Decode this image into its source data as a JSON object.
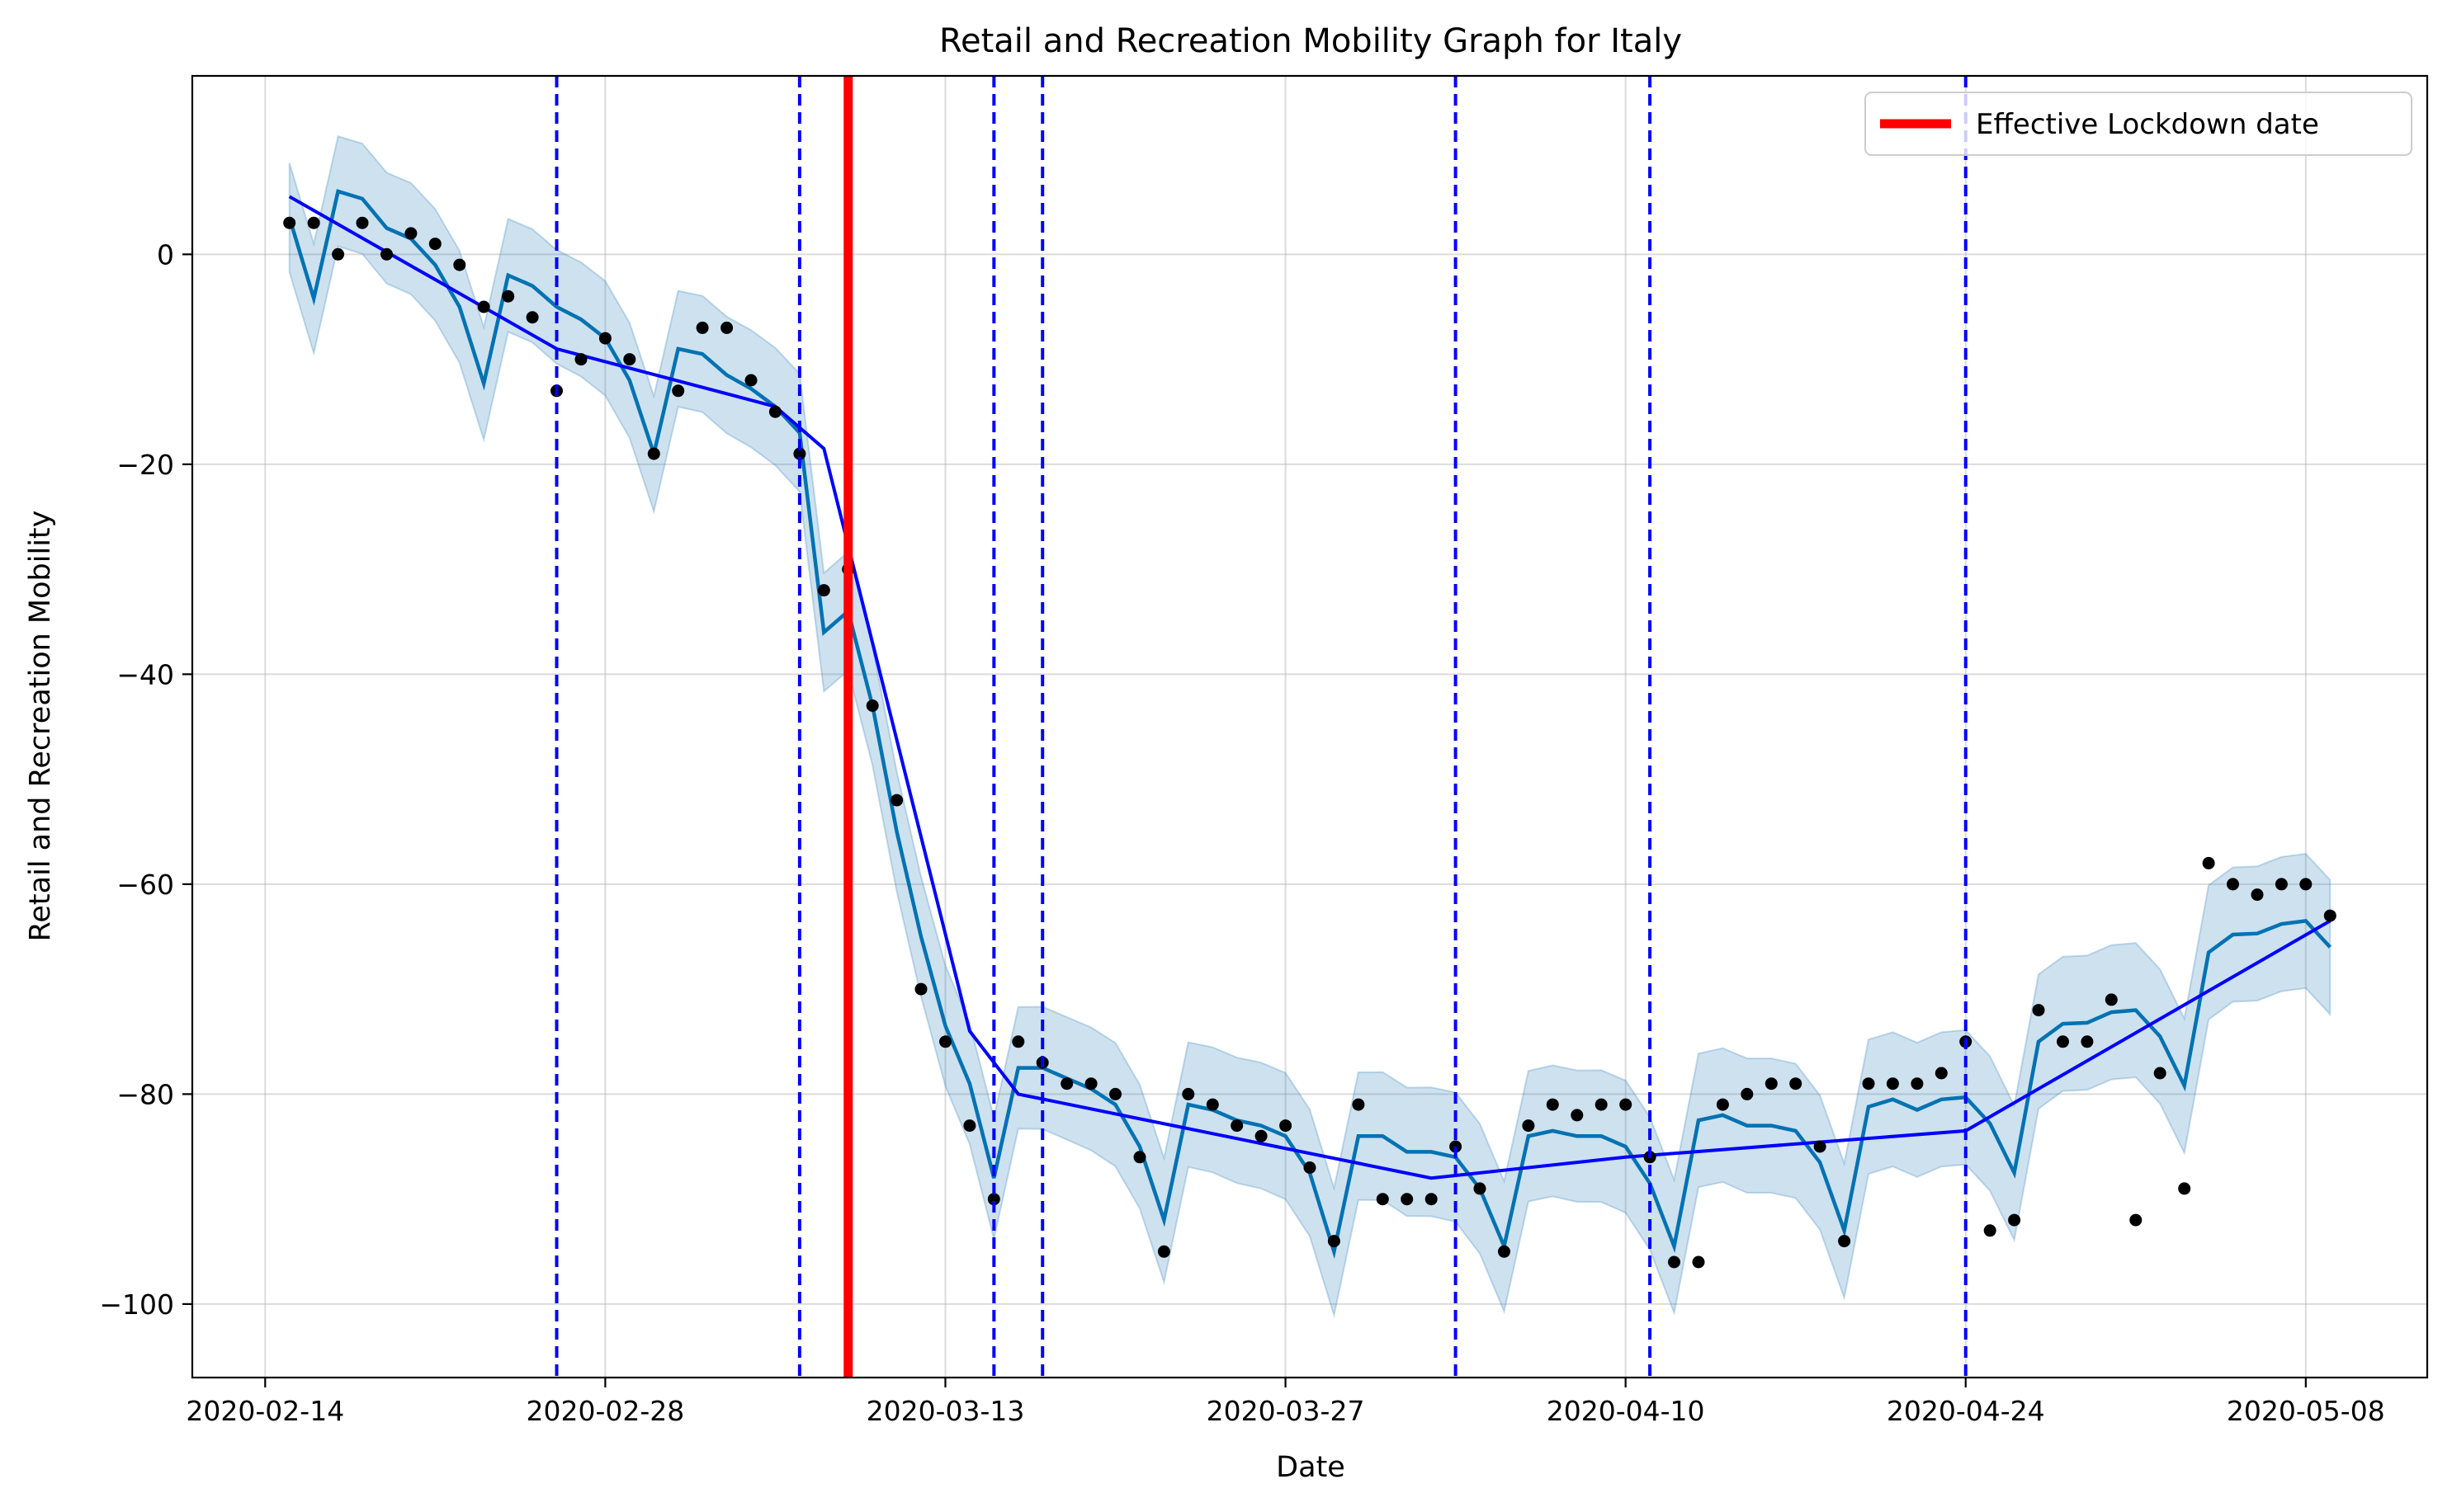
{
  "chart_data": {
    "type": "line",
    "title": "Retail and Recreation Mobility Graph for Italy",
    "xlabel": "Date",
    "ylabel": "Retail and Recreation Mobility",
    "x_start": "2020-02-15",
    "x_ticks": [
      "2020-02-14",
      "2020-02-28",
      "2020-03-13",
      "2020-03-27",
      "2020-04-10",
      "2020-04-24",
      "2020-05-08"
    ],
    "y_ticks": [
      0,
      -20,
      -40,
      -60,
      -80,
      -100
    ],
    "xlim": [
      "2020-02-11",
      "2020-05-13"
    ],
    "ylim": [
      -107,
      17
    ],
    "grid": true,
    "legend": {
      "position": "top-right",
      "entries": [
        "Effective Lockdown date"
      ]
    },
    "lockdown_date": "2020-03-09",
    "changepoints": [
      "2020-02-26",
      "2020-03-07",
      "2020-03-15",
      "2020-03-17",
      "2020-04-03",
      "2020-04-11",
      "2020-04-24"
    ],
    "observed": [
      3,
      3,
      0,
      3,
      0,
      2,
      1,
      -1,
      -5,
      -4,
      -6,
      -13,
      -10,
      -8,
      -10,
      -19,
      -13,
      -7,
      -7,
      -12,
      -15,
      -19,
      -32,
      -30,
      -43,
      -52,
      -70,
      -75,
      -83,
      -90,
      -75,
      -77,
      -79,
      -79,
      -80,
      -86,
      -95,
      -80,
      -81,
      -83,
      -84,
      -83,
      -87,
      -94,
      -81,
      -90,
      -90,
      -90,
      -85,
      -89,
      -95,
      -83,
      -81,
      -82,
      -81,
      -81,
      -86,
      -96,
      -96,
      -81,
      -80,
      -79,
      -79,
      -85,
      -94,
      -79,
      -79,
      -79,
      -78,
      -75,
      -93,
      -92,
      -72,
      -75,
      -75,
      -71,
      -92,
      -78,
      -89,
      -58,
      -60,
      -61,
      -60,
      -60,
      -63
    ],
    "forecast": [
      3.5,
      -4.2,
      6,
      5.3,
      2.5,
      1.5,
      -1,
      -5,
      -12.3,
      -2,
      -3,
      -5,
      -6.2,
      -8,
      -12,
      -19,
      -9,
      -9.5,
      -11.5,
      -12.8,
      -14.5,
      -17,
      -36,
      -34,
      -43,
      -55,
      -65,
      -73.5,
      -79,
      -88,
      -77.5,
      -77.5,
      -78.5,
      -79.5,
      -81,
      -85,
      -92,
      -81,
      -81.5,
      -82.5,
      -83,
      -84,
      -87.5,
      -95,
      -84,
      -84,
      -85.5,
      -85.5,
      -86,
      -89,
      -94.5,
      -84,
      -83.5,
      -84,
      -84,
      -85,
      -88.5,
      -94.5,
      -82.5,
      -82,
      -83,
      -83,
      -83.5,
      -86.5,
      -93,
      -81.2,
      -80.5,
      -81.5,
      -80.5,
      -80.3,
      -82.8,
      -87.5,
      -75,
      -73.3,
      -73.2,
      -72.2,
      -72,
      -74.5,
      -79.2,
      -66.5,
      -64.8,
      -64.7,
      -63.8,
      -63.5,
      -66
    ]
  }
}
